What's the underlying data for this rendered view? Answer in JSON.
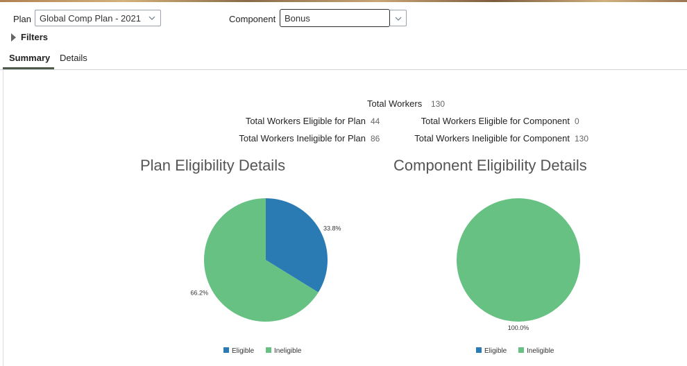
{
  "header": {
    "plan_label": "Plan",
    "plan_value": "Global Comp Plan - 2021",
    "component_label": "Component",
    "component_value": "Bonus",
    "filters_label": "Filters"
  },
  "tabs": [
    {
      "label": "Summary",
      "active": true
    },
    {
      "label": "Details",
      "active": false
    }
  ],
  "totals": {
    "total_workers_label": "Total Workers",
    "total_workers_value": "130",
    "eligible_plan_label": "Total Workers Eligible for Plan",
    "eligible_plan_value": "44",
    "ineligible_plan_label": "Total Workers Ineligible for Plan",
    "ineligible_plan_value": "86",
    "eligible_component_label": "Total Workers Eligible for Component",
    "eligible_component_value": "0",
    "ineligible_component_label": "Total Workers Ineligible for Component",
    "ineligible_component_value": "130"
  },
  "colors": {
    "eligible": "#2a7bb4",
    "ineligible": "#66c183"
  },
  "chart_data": [
    {
      "type": "pie",
      "title": "Plan Eligibility Details",
      "categories": [
        "Eligible",
        "Ineligible"
      ],
      "values": [
        33.8,
        66.2
      ],
      "labels": [
        "33.8%",
        "66.2%"
      ],
      "legend_position": "bottom"
    },
    {
      "type": "pie",
      "title": "Component Eligibility Details",
      "categories": [
        "Eligible",
        "Ineligible"
      ],
      "values": [
        0,
        100.0
      ],
      "labels": [
        "",
        "100.0%"
      ],
      "legend_position": "bottom"
    }
  ]
}
